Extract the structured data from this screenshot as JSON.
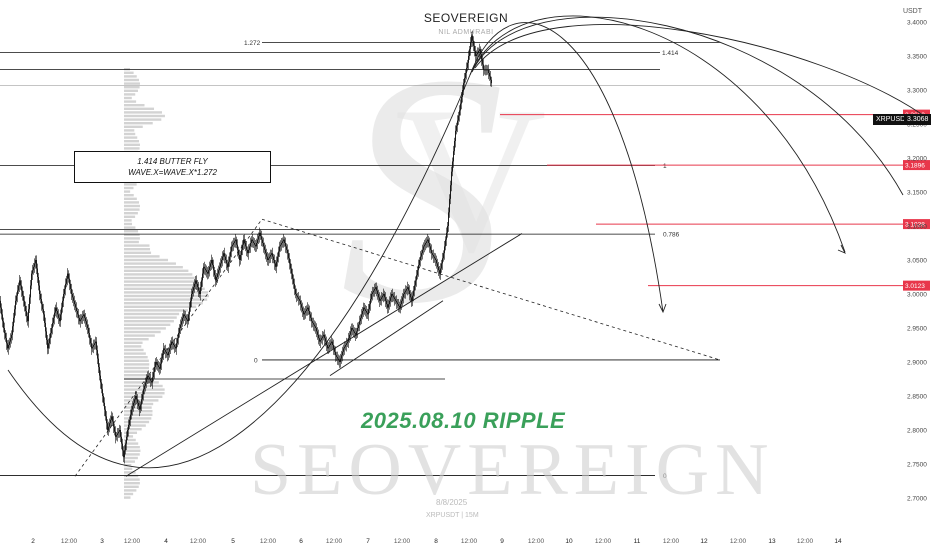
{
  "header": {
    "title": "SEOVEREIGN",
    "subtitle": "NIL ADMURABI",
    "currency": "USDT"
  },
  "annotation": {
    "line1": "1.414 BUTTER FLY",
    "line2": "WAVE.X=WAVE.X*1.272"
  },
  "headline": "2025.08.10 RIPPLE",
  "watermark": {
    "brand": "SEOVEREIGN",
    "date": "8/8/2025",
    "symbol": "XRPUSDT | 15M"
  },
  "price_label": {
    "symbol": "XRPUSDT",
    "value": "3.3068"
  },
  "colors": {
    "candle": "#111111",
    "target": "#e8374b",
    "headline": "#3aa05a",
    "grid": "#111111"
  },
  "chart_data": {
    "type": "candlestick",
    "yaxis": {
      "ylim": [
        2.7,
        3.47
      ],
      "ticks": [
        "3.4000",
        "3.3500",
        "3.3000",
        "3.2500",
        "3.2000",
        "3.1500",
        "3.1000",
        "3.0500",
        "3.0000",
        "2.9500",
        "2.9000",
        "2.8500",
        "2.8000",
        "2.7500",
        "2.7000"
      ]
    },
    "xaxis": {
      "ticks": [
        "2",
        "12:00",
        "3",
        "12:00",
        "4",
        "12:00",
        "5",
        "12:00",
        "6",
        "12:00",
        "7",
        "12:00",
        "8",
        "12:00",
        "9",
        "12:00",
        "10",
        "12:00",
        "11",
        "12:00",
        "12",
        "12:00",
        "13",
        "12:00",
        "14"
      ]
    },
    "fib_levels": [
      {
        "label": "1.272",
        "price": 3.37
      },
      {
        "label": "1.414",
        "price": 3.355
      },
      {
        "label": "1",
        "price": 3.189
      },
      {
        "label": "0.786",
        "price": 3.088
      },
      {
        "label": "0",
        "price": 2.903
      },
      {
        "label": "0",
        "price": 2.733
      }
    ],
    "targets": [
      {
        "label": "3.2638",
        "price": 3.2638
      },
      {
        "label": "3.1896",
        "price": 3.1896
      },
      {
        "label": "3.1028",
        "price": 3.1028
      },
      {
        "label": "3.0123",
        "price": 3.0123
      }
    ],
    "last_price": 3.3068,
    "path": [
      [
        0,
        2.99
      ],
      [
        4,
        2.95
      ],
      [
        8,
        2.92
      ],
      [
        12,
        2.94
      ],
      [
        16,
        2.99
      ],
      [
        20,
        3.02
      ],
      [
        24,
        2.99
      ],
      [
        28,
        2.96
      ],
      [
        32,
        3.03
      ],
      [
        36,
        3.05
      ],
      [
        40,
        3.0
      ],
      [
        44,
        2.97
      ],
      [
        48,
        2.92
      ],
      [
        52,
        2.95
      ],
      [
        56,
        2.98
      ],
      [
        60,
        2.96
      ],
      [
        64,
        3.0
      ],
      [
        68,
        3.03
      ],
      [
        72,
        3.0
      ],
      [
        76,
        2.98
      ],
      [
        80,
        2.96
      ],
      [
        84,
        2.97
      ],
      [
        88,
        2.95
      ],
      [
        92,
        2.92
      ],
      [
        96,
        2.93
      ],
      [
        100,
        2.88
      ],
      [
        104,
        2.84
      ],
      [
        108,
        2.8
      ],
      [
        112,
        2.82
      ],
      [
        116,
        2.79
      ],
      [
        120,
        2.8
      ],
      [
        124,
        2.76
      ],
      [
        128,
        2.8
      ],
      [
        132,
        2.83
      ],
      [
        136,
        2.85
      ],
      [
        140,
        2.83
      ],
      [
        144,
        2.86
      ],
      [
        148,
        2.88
      ],
      [
        152,
        2.87
      ],
      [
        156,
        2.9
      ],
      [
        160,
        2.89
      ],
      [
        164,
        2.92
      ],
      [
        168,
        2.91
      ],
      [
        172,
        2.93
      ],
      [
        176,
        2.92
      ],
      [
        180,
        2.95
      ],
      [
        184,
        2.97
      ],
      [
        188,
        2.96
      ],
      [
        192,
        3.0
      ],
      [
        196,
        3.02
      ],
      [
        200,
        3.0
      ],
      [
        204,
        3.04
      ],
      [
        208,
        3.03
      ],
      [
        212,
        3.05
      ],
      [
        216,
        3.02
      ],
      [
        220,
        3.04
      ],
      [
        224,
        3.06
      ],
      [
        228,
        3.04
      ],
      [
        232,
        3.07
      ],
      [
        236,
        3.08
      ],
      [
        240,
        3.05
      ],
      [
        244,
        3.08
      ],
      [
        248,
        3.06
      ],
      [
        252,
        3.08
      ],
      [
        256,
        3.07
      ],
      [
        260,
        3.09
      ],
      [
        264,
        3.07
      ],
      [
        268,
        3.05
      ],
      [
        272,
        3.06
      ],
      [
        276,
        3.04
      ],
      [
        280,
        3.07
      ],
      [
        284,
        3.08
      ],
      [
        288,
        3.06
      ],
      [
        292,
        3.03
      ],
      [
        296,
        3.0
      ],
      [
        300,
        2.99
      ],
      [
        304,
        2.97
      ],
      [
        308,
        2.98
      ],
      [
        312,
        2.96
      ],
      [
        316,
        2.95
      ],
      [
        320,
        2.93
      ],
      [
        324,
        2.94
      ],
      [
        328,
        2.92
      ],
      [
        332,
        2.93
      ],
      [
        336,
        2.91
      ],
      [
        340,
        2.9
      ],
      [
        344,
        2.92
      ],
      [
        348,
        2.93
      ],
      [
        352,
        2.95
      ],
      [
        356,
        2.94
      ],
      [
        360,
        2.96
      ],
      [
        364,
        2.98
      ],
      [
        368,
        2.97
      ],
      [
        372,
        3.0
      ],
      [
        376,
        3.01
      ],
      [
        380,
        2.99
      ],
      [
        384,
        3.0
      ],
      [
        388,
        2.98
      ],
      [
        392,
        3.0
      ],
      [
        396,
        2.99
      ],
      [
        400,
        2.98
      ],
      [
        404,
        3.0
      ],
      [
        408,
        3.01
      ],
      [
        412,
        2.99
      ],
      [
        416,
        3.02
      ],
      [
        420,
        3.05
      ],
      [
        424,
        3.07
      ],
      [
        428,
        3.08
      ],
      [
        432,
        3.06
      ],
      [
        436,
        3.05
      ],
      [
        440,
        3.03
      ],
      [
        444,
        3.06
      ],
      [
        448,
        3.1
      ],
      [
        452,
        3.18
      ],
      [
        456,
        3.24
      ],
      [
        460,
        3.27
      ],
      [
        464,
        3.31
      ],
      [
        468,
        3.34
      ],
      [
        472,
        3.38
      ],
      [
        476,
        3.35
      ],
      [
        480,
        3.36
      ],
      [
        484,
        3.33
      ],
      [
        488,
        3.33
      ],
      [
        492,
        3.31
      ]
    ]
  }
}
